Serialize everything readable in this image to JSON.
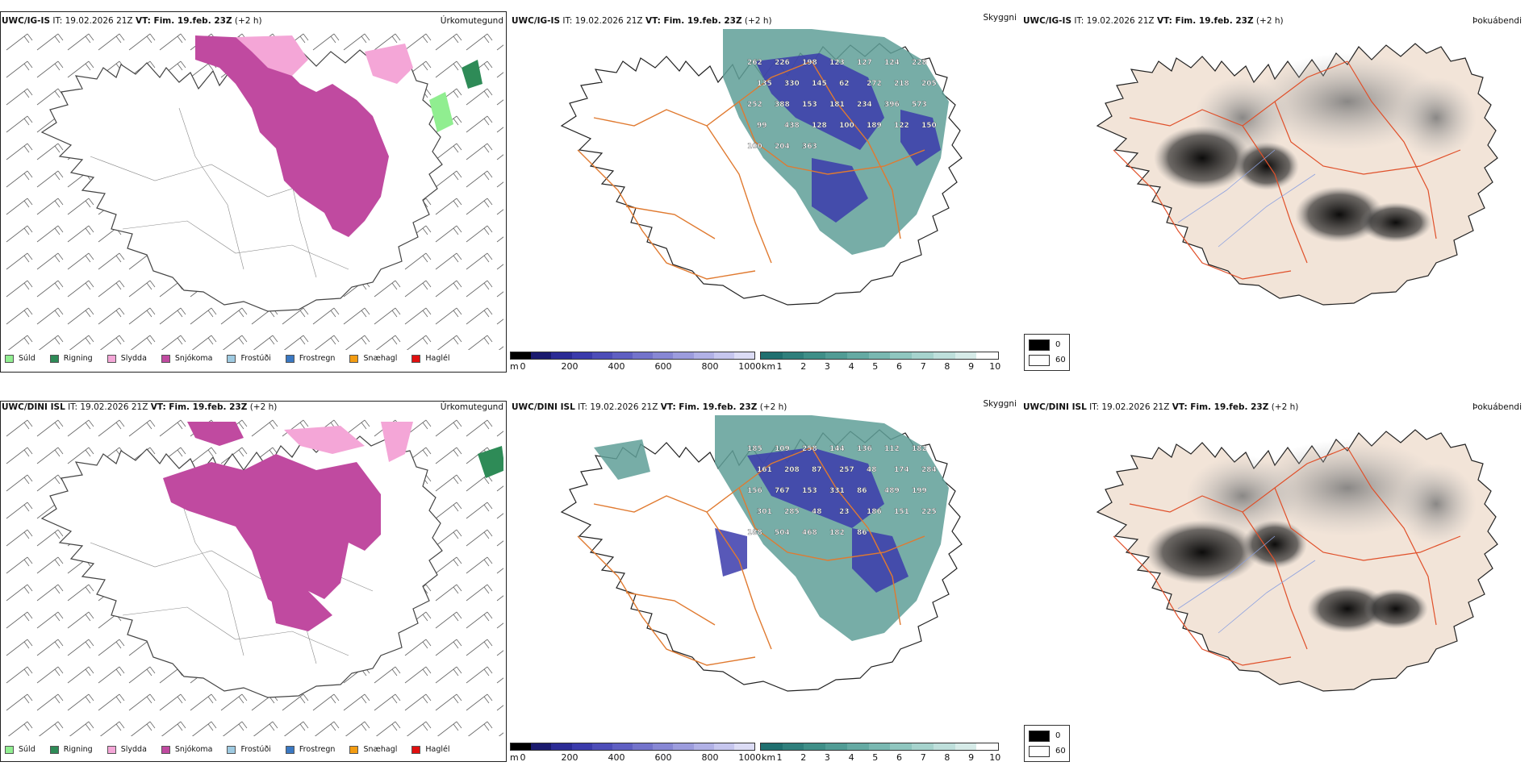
{
  "rows": [
    {
      "model": "UWC/IG-IS",
      "it_label": "IT:",
      "it_value": "19.02.2026 21Z",
      "vt_label": "VT: Fim. 19.feb. 23Z",
      "lead": "(+2 h)"
    },
    {
      "model": "UWC/DINI ISL",
      "it_label": "IT:",
      "it_value": "19.02.2026 21Z",
      "vt_label": "VT: Fim. 19.feb. 23Z",
      "lead": "(+2 h)"
    }
  ],
  "field_names": {
    "precip_type": "Úrkomutegund",
    "visibility": "Skyggni",
    "fog_probability": "Þokuábendi"
  },
  "precip_legend": [
    {
      "label": "Súld",
      "color": "#90ee90"
    },
    {
      "label": "Rigning",
      "color": "#2e8b57"
    },
    {
      "label": "Slydda",
      "color": "#f4a6d7"
    },
    {
      "label": "Snjókoma",
      "color": "#c04aa0"
    },
    {
      "label": "Frostúði",
      "color": "#9ecae1"
    },
    {
      "label": "Frostregn",
      "color": "#3a78c2"
    },
    {
      "label": "Snæhagl",
      "color": "#f39c12"
    },
    {
      "label": "Haglél",
      "color": "#e01010"
    }
  ],
  "visibility_scale_m": {
    "unit": "m",
    "ticks": [
      "0",
      "200",
      "400",
      "600",
      "800",
      "1000"
    ],
    "colors": [
      "#000000",
      "#1a1a6e",
      "#2b2b95",
      "#3b3bab",
      "#4d4db8",
      "#5f5fc2",
      "#7373cb",
      "#8787d4",
      "#9c9cdd",
      "#b1b1e6",
      "#c6c6ee",
      "#dcdcf5"
    ]
  },
  "visibility_scale_km": {
    "unit": "km",
    "ticks": [
      "1",
      "2",
      "3",
      "4",
      "5",
      "6",
      "7",
      "8",
      "9",
      "10"
    ],
    "colors": [
      "#1f6f6f",
      "#2f7f7c",
      "#3f8f88",
      "#519c95",
      "#65aaa3",
      "#79b8b1",
      "#8fc6bf",
      "#a6d3cd",
      "#bedfdb",
      "#d6ebe8",
      "#ffffff"
    ]
  },
  "fog_legend": [
    {
      "label": "0",
      "color": "#000000"
    },
    {
      "label": "60",
      "color": "#ffffff"
    }
  ],
  "visibility_labels_top": [
    "262",
    "226",
    "198",
    "123",
    "127",
    "124",
    "228",
    "135",
    "330",
    "145",
    "62",
    "272",
    "218",
    "205",
    "252",
    "388",
    "153",
    "181",
    "234",
    "396",
    "573",
    "99",
    "438",
    "128",
    "100",
    "189",
    "122",
    "150",
    "100",
    "204",
    "363"
  ],
  "visibility_labels_bottom": [
    "185",
    "109",
    "258",
    "144",
    "136",
    "112",
    "182",
    "161",
    "208",
    "87",
    "257",
    "48",
    "174",
    "284",
    "156",
    "767",
    "153",
    "331",
    "86",
    "489",
    "199",
    "301",
    "285",
    "48",
    "23",
    "186",
    "151",
    "225",
    "188",
    "504",
    "468",
    "182",
    "86"
  ],
  "colors": {
    "road": "#e07a30",
    "road_red": "#e0502a",
    "coast": "#222222",
    "land_fog": "#f2e4d8",
    "snow": "#c04aa0",
    "sleet": "#f4a6d7"
  }
}
